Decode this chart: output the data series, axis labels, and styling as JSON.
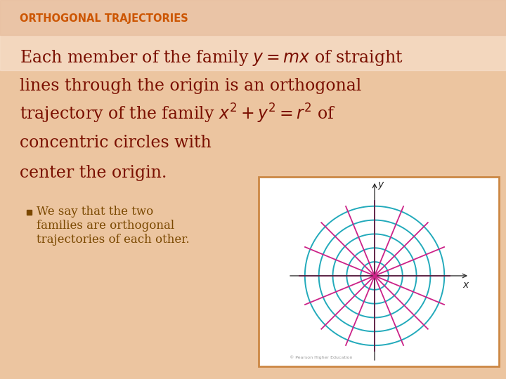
{
  "bg_color_top": "#f5dece",
  "bg_color": "#ecc5a0",
  "title_text": "ORTHOGONAL TRAJECTORIES",
  "title_color": "#cc5500",
  "title_fontsize": 10.5,
  "main_text_color": "#7a0f00",
  "main_text_fontsize": 17,
  "bullet_text_color": "#7a4800",
  "bullet_text_fontsize": 12,
  "circle_radii": [
    0.5,
    1.0,
    1.5,
    2.0,
    2.5
  ],
  "circle_color": "#22aabb",
  "circle_lw": 1.4,
  "line_angles_deg": [
    0,
    22.5,
    45,
    67.5,
    90,
    112.5,
    135,
    157.5
  ],
  "line_color": "#cc2288",
  "line_lw": 1.3,
  "line_extent": 2.7,
  "axes_color": "#222222",
  "box_border_color": "#cc8844",
  "box_bg_color": "#ffffff",
  "graph_xlim": [
    -3.1,
    3.4
  ],
  "graph_ylim": [
    -3.1,
    3.4
  ],
  "header_bar_color": "#e8bfa0"
}
